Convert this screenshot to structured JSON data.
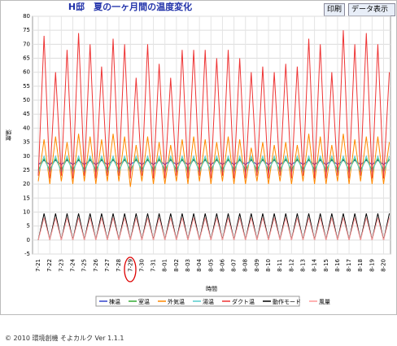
{
  "ui": {
    "print_button": "印刷",
    "data_button": "データ表示",
    "footer": "© 2010 環境創機 そよカルク Ver 1.1.1"
  },
  "chart_data": {
    "type": "line",
    "title": "H邸　夏の一ヶ月間の温度変化",
    "y_label": "温度",
    "x_label": "時間",
    "grid": true,
    "x": [
      0,
      0.5,
      1,
      1.5,
      2,
      2.5,
      3,
      3.5,
      4,
      4.5,
      5,
      5.5,
      6,
      6.5,
      7,
      7.5,
      8,
      8.5,
      9,
      9.5,
      10,
      10.5,
      11,
      11.5,
      12,
      12.5,
      13,
      13.5,
      14,
      14.5,
      15,
      15.5,
      16,
      16.5,
      17,
      17.5,
      18,
      18.5,
      19,
      19.5,
      20,
      20.5,
      21,
      21.5,
      22,
      22.5,
      23,
      23.5,
      24,
      24.5,
      25,
      25.5,
      26,
      26.5,
      27,
      27.5,
      28,
      28.5,
      29,
      29.5,
      30,
      30.5
    ],
    "xlim": [
      -0.5,
      30.6
    ],
    "xticks": [
      {
        "value": 0,
        "label": "7-21"
      },
      {
        "value": 1,
        "label": "7-22"
      },
      {
        "value": 2,
        "label": "7-23"
      },
      {
        "value": 3,
        "label": "7-24"
      },
      {
        "value": 4,
        "label": "7-25"
      },
      {
        "value": 5,
        "label": "7-26"
      },
      {
        "value": 6,
        "label": "7-27"
      },
      {
        "value": 7,
        "label": "7-28"
      },
      {
        "value": 8,
        "label": "7-29"
      },
      {
        "value": 9,
        "label": "7-30"
      },
      {
        "value": 10,
        "label": "7-31"
      },
      {
        "value": 11,
        "label": "8-01"
      },
      {
        "value": 12,
        "label": "8-02"
      },
      {
        "value": 13,
        "label": "8-03"
      },
      {
        "value": 14,
        "label": "8-04"
      },
      {
        "value": 15,
        "label": "8-05"
      },
      {
        "value": 16,
        "label": "8-06"
      },
      {
        "value": 17,
        "label": "8-07"
      },
      {
        "value": 18,
        "label": "8-08"
      },
      {
        "value": 19,
        "label": "8-09"
      },
      {
        "value": 20,
        "label": "8-10"
      },
      {
        "value": 21,
        "label": "8-11"
      },
      {
        "value": 22,
        "label": "8-12"
      },
      {
        "value": 23,
        "label": "8-13"
      },
      {
        "value": 24,
        "label": "8-14"
      },
      {
        "value": 25,
        "label": "8-15"
      },
      {
        "value": 26,
        "label": "8-16"
      },
      {
        "value": 27,
        "label": "8-17"
      },
      {
        "value": 28,
        "label": "8-18"
      },
      {
        "value": 29,
        "label": "8-19"
      },
      {
        "value": 30,
        "label": "8-20"
      }
    ],
    "ylim": [
      -5,
      80
    ],
    "yticks": [
      -5,
      0,
      5,
      10,
      15,
      20,
      25,
      30,
      35,
      40,
      45,
      50,
      55,
      60,
      65,
      70,
      75,
      80
    ],
    "series": [
      {
        "name": "棟温",
        "color": "#3344cc",
        "values": [
          27,
          28.5,
          27,
          28.5,
          27,
          28.5,
          27,
          28.5,
          27,
          28.5,
          27,
          28.5,
          27,
          28.5,
          27,
          28.5,
          27,
          28.5,
          27,
          28.5,
          27,
          28.5,
          27,
          28.5,
          27,
          28.5,
          27,
          28.5,
          27,
          28.5,
          27,
          28.5,
          27,
          28.5,
          27,
          28.5,
          27,
          28.5,
          27,
          28.5,
          27,
          28.5,
          27,
          28.5,
          27,
          28.5,
          27,
          28.5,
          27,
          28.5,
          27,
          28.5,
          27,
          28.5,
          27,
          28.5,
          27,
          28.5,
          27,
          28.5,
          27,
          28.5
        ]
      },
      {
        "name": "室温",
        "color": "#33aa33",
        "values": [
          25,
          29,
          25,
          29,
          25,
          29,
          25,
          29,
          25,
          29,
          25,
          29,
          25,
          29,
          25,
          29,
          25,
          29,
          25,
          29,
          25,
          29,
          25,
          29,
          25,
          29,
          25,
          29,
          25,
          29,
          25,
          29,
          25,
          29,
          25,
          29,
          25,
          29,
          25,
          29,
          25,
          29,
          25,
          29,
          25,
          29,
          25,
          29,
          25,
          29,
          25,
          29,
          25,
          29,
          25,
          29,
          25,
          29,
          25,
          29,
          25,
          29
        ]
      },
      {
        "name": "外気温",
        "color": "#ff8800",
        "values": [
          21,
          36,
          20,
          37,
          21,
          35,
          20,
          38,
          21,
          37,
          20,
          36,
          21,
          38,
          21,
          37,
          19,
          34,
          21,
          37,
          20,
          35,
          20,
          34,
          21,
          36,
          20,
          37,
          21,
          36,
          20,
          35,
          21,
          37,
          20,
          36,
          20,
          33,
          21,
          35,
          20,
          34,
          21,
          35,
          20,
          34,
          21,
          38,
          20,
          37,
          20,
          34,
          21,
          38,
          20,
          36,
          21,
          37,
          20,
          37,
          20,
          35
        ]
      },
      {
        "name": "湯温",
        "color": "#55cccc",
        "values": [
          24,
          30,
          24,
          30,
          24,
          30,
          24,
          30,
          24,
          30,
          24,
          30,
          24,
          30,
          24,
          30,
          24,
          30,
          24,
          30,
          24,
          30,
          24,
          30,
          24,
          30,
          24,
          30,
          24,
          30,
          24,
          30,
          24,
          30,
          24,
          30,
          24,
          30,
          24,
          30,
          24,
          30,
          24,
          30,
          24,
          30,
          24,
          30,
          24,
          30,
          24,
          30,
          24,
          30,
          24,
          30,
          24,
          30,
          24,
          30,
          24,
          30
        ]
      },
      {
        "name": "ダクト温",
        "color": "#ee3333",
        "values": [
          23,
          73,
          22,
          60,
          23,
          68,
          22,
          74,
          23,
          70,
          22,
          62,
          23,
          72,
          23,
          70,
          22,
          58,
          23,
          70,
          22,
          63,
          22,
          58,
          23,
          68,
          22,
          68,
          23,
          68,
          22,
          65,
          23,
          68,
          22,
          65,
          22,
          60,
          23,
          62,
          22,
          60,
          23,
          63,
          22,
          62,
          23,
          72,
          22,
          70,
          22,
          60,
          23,
          75,
          22,
          70,
          23,
          74,
          22,
          70,
          22,
          60
        ]
      },
      {
        "name": "動作モード",
        "color": "#000000",
        "values": [
          0,
          9.5,
          0,
          9.5,
          0,
          9.5,
          0,
          9.5,
          0,
          9.5,
          0,
          9.5,
          0,
          9.5,
          0,
          9.5,
          0,
          9.5,
          0,
          9.5,
          0,
          9.5,
          0,
          9.5,
          0,
          9.5,
          0,
          9.5,
          0,
          9.5,
          0,
          9.5,
          0,
          9.5,
          0,
          9.5,
          0,
          9.5,
          0,
          9.5,
          0,
          9.5,
          0,
          9.5,
          0,
          9.5,
          0,
          9.5,
          0,
          9.5,
          0,
          9.5,
          0,
          9.5,
          0,
          9.5,
          0,
          9.5,
          0,
          9.5,
          0,
          9.5
        ]
      },
      {
        "name": "風量",
        "color": "#ff9999",
        "values": [
          0,
          8,
          0,
          8,
          0,
          8,
          0,
          8,
          0,
          8,
          0,
          8,
          0,
          8,
          0,
          8,
          0,
          8,
          0,
          8,
          0,
          8,
          0,
          8,
          0,
          8,
          0,
          8,
          0,
          8,
          0,
          8,
          0,
          8,
          0,
          8,
          0,
          8,
          0,
          8,
          0,
          8,
          0,
          8,
          0,
          8,
          0,
          8,
          0,
          8,
          0,
          8,
          0,
          8,
          0,
          8,
          0,
          8,
          0,
          8,
          0,
          8
        ]
      }
    ]
  }
}
